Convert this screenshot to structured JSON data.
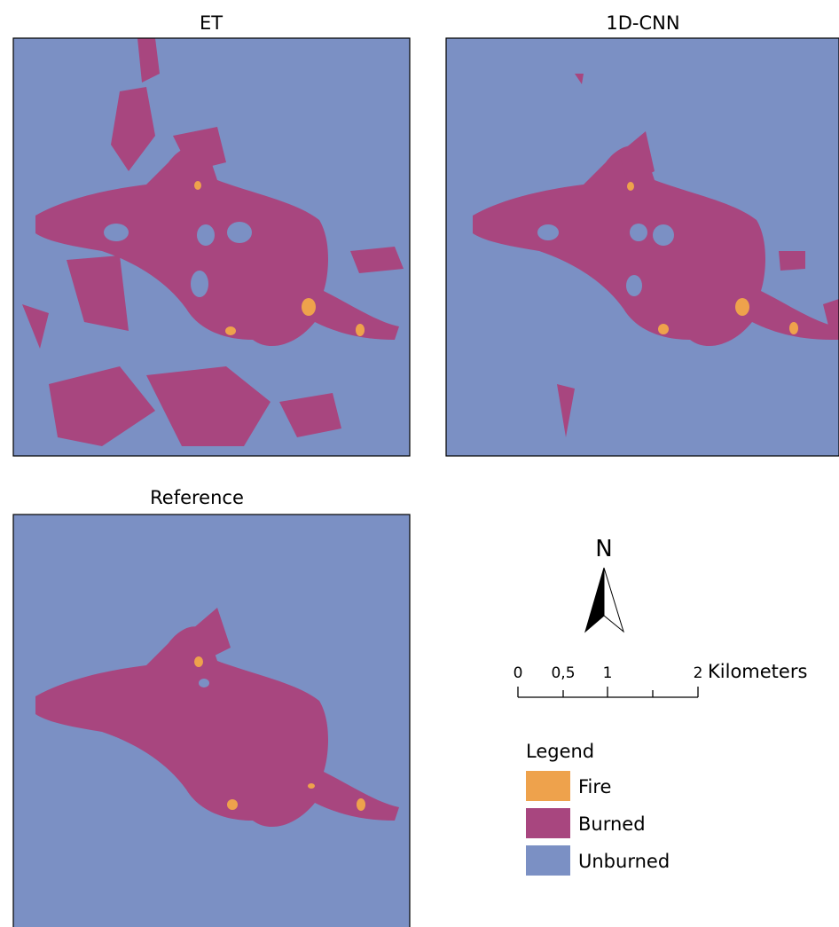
{
  "panels": [
    {
      "title": "ET"
    },
    {
      "title": "1D-CNN"
    },
    {
      "title": "Reference"
    }
  ],
  "north_arrow": {
    "label": "N"
  },
  "scale_bar": {
    "labels": [
      "0",
      "0,5",
      "1",
      "2"
    ],
    "units": "Kilometers"
  },
  "legend": {
    "title": "Legend",
    "items": [
      {
        "label": "Fire",
        "color": "#eea24c"
      },
      {
        "label": "Burned",
        "color": "#a8467f"
      },
      {
        "label": "Unburned",
        "color": "#7b90c4"
      }
    ]
  }
}
